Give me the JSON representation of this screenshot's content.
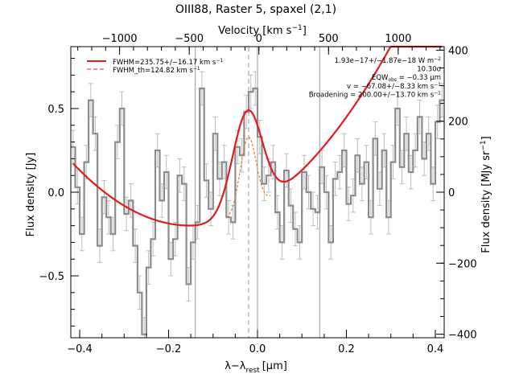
{
  "chart_data": {
    "type": "line",
    "title": "OIII88, Raster 5, spaxel (2,1)",
    "xlabel": "λ−λ",
    "xlabel_sub": "rest",
    "xlabel_unit": "[μm]",
    "top_axis_label": "Velocity [km s",
    "top_axis_label_sup": "−1",
    "top_axis_label_end": "]",
    "ylabel": "Flux density [Jy]",
    "right_ylabel": "Flux density [MJy sr",
    "right_ylabel_sup": "−1",
    "right_ylabel_end": "]",
    "xlim": [
      -0.42,
      0.42
    ],
    "ylim": [
      -0.87,
      0.87
    ],
    "right_ylim": [
      -410,
      410
    ],
    "top_xlim": [
      -1350,
      1330
    ],
    "x_ticks": [
      -0.4,
      -0.2,
      0.0,
      0.2,
      0.4
    ],
    "x_tick_labels": [
      "−0.4",
      "−0.2",
      "0.0",
      "0.2",
      "0.4"
    ],
    "y_ticks": [
      -0.5,
      0.0,
      0.5
    ],
    "y_tick_labels": [
      "−0.5",
      "0.0",
      "0.5"
    ],
    "right_ticks": [
      -400,
      -200,
      0,
      200,
      400
    ],
    "right_tick_labels": [
      "−400",
      "−200",
      "0",
      "200",
      "400"
    ],
    "top_ticks": [
      -1000,
      -500,
      0,
      500,
      1000
    ],
    "top_tick_labels": [
      "−1000",
      "−500",
      "0",
      "500",
      "1000"
    ],
    "vertical_lines": [
      -0.14,
      0.0,
      0.14
    ],
    "dashed_vertical_line": -0.02,
    "legend": [
      {
        "label": "FWHM=235.75+/−16.17 km s",
        "sup": "−1",
        "style": "solid"
      },
      {
        "label": "FWHM_th=124.82 km s",
        "sup": "−1",
        "style": "dashed"
      }
    ],
    "annotations": [
      {
        "text": "1.93e−17+/−1.87e−18 W m",
        "sup": "−2"
      },
      {
        "text": "10.30σ",
        "sup": ""
      },
      {
        "text": "EQW",
        "sub": "obs",
        "text2": " = −0.33 μm"
      },
      {
        "text": "v = −67.08+/−8.33 km s",
        "sup": "−1"
      },
      {
        "text": "Broadening = 200.00+/−13.70 km s",
        "sup": "−1"
      }
    ],
    "series": [
      {
        "name": "Spectrum",
        "style": "step",
        "x": [
          -0.415,
          -0.405,
          -0.395,
          -0.385,
          -0.375,
          -0.365,
          -0.355,
          -0.345,
          -0.335,
          -0.325,
          -0.315,
          -0.305,
          -0.295,
          -0.285,
          -0.275,
          -0.265,
          -0.255,
          -0.245,
          -0.235,
          -0.225,
          -0.215,
          -0.205,
          -0.195,
          -0.185,
          -0.175,
          -0.165,
          -0.155,
          -0.145,
          -0.135,
          -0.125,
          -0.115,
          -0.105,
          -0.095,
          -0.085,
          -0.075,
          -0.065,
          -0.055,
          -0.045,
          -0.035,
          -0.025,
          -0.015,
          -0.005,
          0.005,
          0.015,
          0.025,
          0.035,
          0.045,
          0.055,
          0.065,
          0.075,
          0.085,
          0.095,
          0.105,
          0.115,
          0.125,
          0.135,
          0.145,
          0.155,
          0.165,
          0.175,
          0.185,
          0.195,
          0.205,
          0.215,
          0.225,
          0.235,
          0.245,
          0.255,
          0.265,
          0.275,
          0.285,
          0.295,
          0.305,
          0.315,
          0.325,
          0.335,
          0.345,
          0.355,
          0.365,
          0.375,
          0.385,
          0.395,
          0.405,
          0.415
        ],
        "values": [
          0.27,
          0.03,
          -0.25,
          0.18,
          0.55,
          0.35,
          -0.32,
          -0.03,
          -0.15,
          -0.25,
          0.3,
          0.5,
          -0.13,
          -0.05,
          -0.32,
          -0.6,
          -0.85,
          -0.45,
          -0.28,
          0.25,
          -0.05,
          0.12,
          -0.4,
          -0.28,
          0.1,
          0.05,
          -0.55,
          -0.3,
          -0.18,
          0.62,
          0.07,
          -0.1,
          0.35,
          0.08,
          0.18,
          -0.15,
          -0.18,
          0.27,
          0.22,
          0.48,
          0.6,
          0.62,
          0.33,
          0.05,
          0.1,
          0.18,
          -0.12,
          -0.3,
          0.13,
          -0.08,
          -0.22,
          -0.3,
          0.12,
          0.0,
          -0.1,
          -0.12,
          0.15,
          0.0,
          -0.3,
          0.08,
          0.12,
          0.25,
          -0.07,
          -0.02,
          0.22,
          0.05,
          0.18,
          -0.15,
          0.32,
          0.02,
          0.25,
          -0.15,
          0.18,
          0.5,
          0.15,
          0.35,
          0.12,
          0.25,
          0.45,
          0.2,
          0.35,
          0.05,
          0.42,
          0.55
        ],
        "errors": [
          0.1,
          0.1,
          0.1,
          0.1,
          0.1,
          0.1,
          0.1,
          0.1,
          0.1,
          0.1,
          0.1,
          0.1,
          0.1,
          0.1,
          0.1,
          0.1,
          0.1,
          0.1,
          0.1,
          0.1,
          0.1,
          0.1,
          0.1,
          0.1,
          0.1,
          0.1,
          0.1,
          0.1,
          0.1,
          0.1,
          0.1,
          0.1,
          0.1,
          0.1,
          0.1,
          0.1,
          0.1,
          0.1,
          0.1,
          0.1,
          0.1,
          0.1,
          0.1,
          0.1,
          0.1,
          0.1,
          0.1,
          0.1,
          0.1,
          0.1,
          0.1,
          0.1,
          0.1,
          0.1,
          0.1,
          0.1,
          0.1,
          0.1,
          0.1,
          0.1,
          0.1,
          0.1,
          0.1,
          0.1,
          0.1,
          0.1,
          0.1,
          0.1,
          0.1,
          0.1,
          0.1,
          0.1,
          0.1,
          0.1,
          0.1,
          0.1,
          0.1,
          0.1,
          0.1,
          0.1,
          0.1,
          0.1,
          0.1,
          0.1
        ]
      },
      {
        "name": "FWHM=235.75+/−16.17 km s−1",
        "style": "fit",
        "peak": 0.49,
        "center": -0.02,
        "sigma": 0.034,
        "baseline": {
          "x_min": -0.15,
          "y_min": -0.2,
          "curvature": 5.3
        }
      },
      {
        "name": "FWHM_th=124.82 km s−1",
        "style": "dashed-fit",
        "peak": 0.33,
        "center": -0.02,
        "sigma": 0.018
      }
    ],
    "colors": {
      "fit": "#e41a1c",
      "thin_fit": "#e08030",
      "spectrum": "#8c8c8c",
      "errors": "#bdbdbd",
      "vlines": "#999999",
      "axes": "#000000"
    },
    "grid": false
  }
}
